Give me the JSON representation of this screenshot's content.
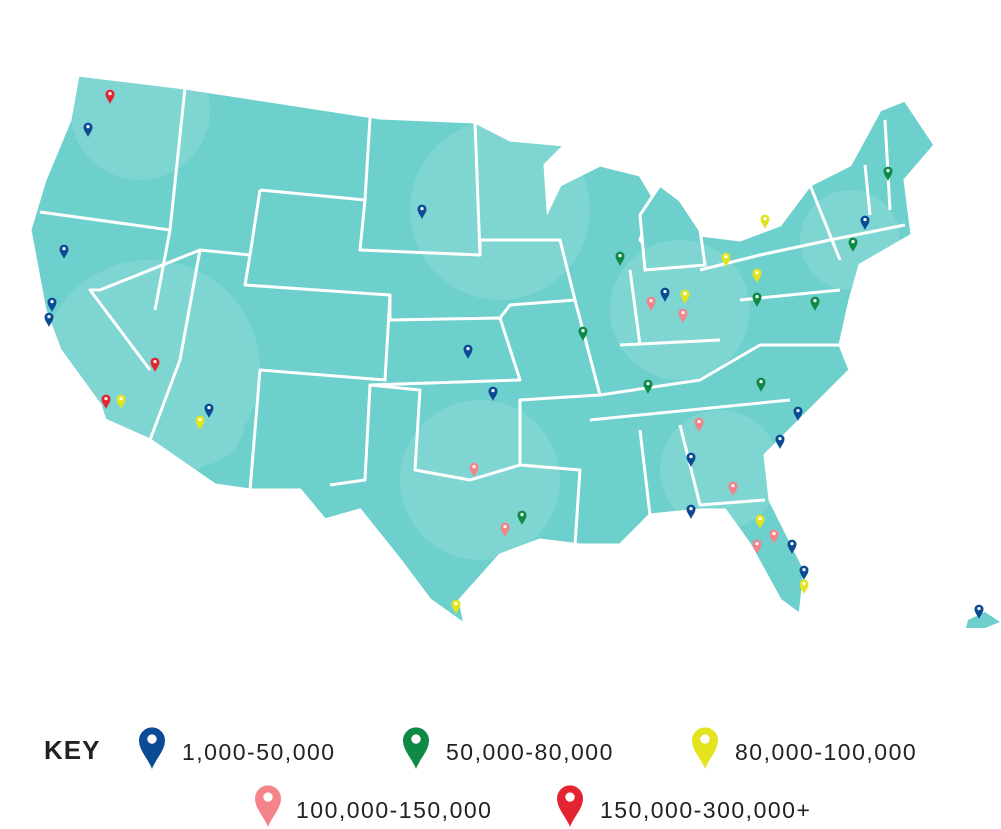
{
  "legend": {
    "title": "KEY",
    "items": [
      {
        "label": "1,000-50,000",
        "color": "#0b4a94"
      },
      {
        "label": "50,000-80,000",
        "color": "#0f8a44"
      },
      {
        "label": "80,000-100,000",
        "color": "#e3e41f"
      },
      {
        "label": "100,000-150,000",
        "color": "#f4848a"
      },
      {
        "label": "150,000-300,000+",
        "color": "#e42431"
      }
    ]
  }
}
